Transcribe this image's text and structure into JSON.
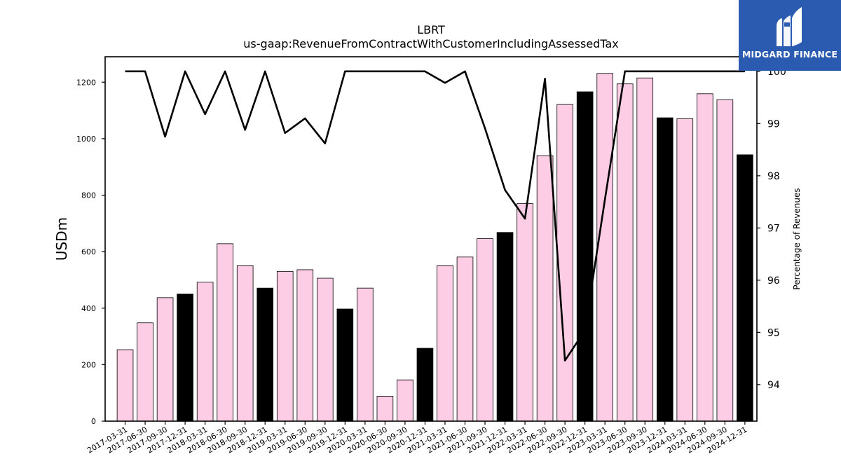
{
  "chart_data": {
    "type": "bar",
    "title": "LBRT",
    "subtitle": "us-gaap:RevenueFromContractWithCustomerIncludingAssessedTax",
    "ylabel": "USDm",
    "y2label": "Percentage of Revenues",
    "ylim": [
      0,
      1290
    ],
    "y2lim": [
      93.3,
      100.28
    ],
    "yticks": [
      0,
      200,
      400,
      600,
      800,
      1000,
      1200
    ],
    "y2ticks": [
      94,
      95,
      96,
      97,
      98,
      99,
      100
    ],
    "categories": [
      "2017-03-31",
      "2017-06-30",
      "2017-09-30",
      "2017-12-31",
      "2018-03-31",
      "2018-06-30",
      "2018-09-30",
      "2018-12-31",
      "2019-03-31",
      "2019-06-30",
      "2019-09-30",
      "2019-12-31",
      "2020-03-31",
      "2020-06-30",
      "2020-09-30",
      "2020-12-31",
      "2021-03-31",
      "2021-06-30",
      "2021-09-30",
      "2021-12-31",
      "2022-03-31",
      "2022-06-30",
      "2022-09-30",
      "2022-12-31",
      "2023-03-31",
      "2023-06-30",
      "2023-09-30",
      "2023-12-31",
      "2024-03-31",
      "2024-06-30",
      "2024-09-30",
      "2024-12-31"
    ],
    "series": [
      {
        "type": "bar",
        "values": [
          253,
          348,
          437,
          450,
          492,
          628,
          551,
          471,
          530,
          536,
          506,
          397,
          471,
          88,
          146,
          258,
          551,
          581,
          646,
          668,
          770,
          940,
          1121,
          1166,
          1231,
          1194,
          1215,
          1074,
          1071,
          1159,
          1138,
          943
        ],
        "colors": [
          "#fccde5",
          "#fccde5",
          "#fccde5",
          "#000000",
          "#fccde5",
          "#fccde5",
          "#fccde5",
          "#000000",
          "#fccde5",
          "#fccde5",
          "#fccde5",
          "#000000",
          "#fccde5",
          "#fccde5",
          "#fccde5",
          "#000000",
          "#fccde5",
          "#fccde5",
          "#fccde5",
          "#000000",
          "#fccde5",
          "#fccde5",
          "#fccde5",
          "#000000",
          "#fccde5",
          "#fccde5",
          "#fccde5",
          "#000000",
          "#fccde5",
          "#fccde5",
          "#fccde5",
          "#000000"
        ]
      },
      {
        "type": "line",
        "axis": "right",
        "color": "#000000",
        "values": [
          100,
          100,
          98.75,
          100,
          99.18,
          100,
          98.88,
          100,
          98.82,
          99.1,
          98.62,
          100,
          100,
          100,
          100,
          100,
          99.78,
          100,
          98.91,
          97.73,
          97.18,
          99.86,
          94.46,
          95.04,
          97.55,
          100,
          100,
          100,
          100,
          100,
          100,
          100
        ]
      }
    ],
    "grid": false,
    "legend": "none"
  },
  "logo": {
    "text": "MIDGARD FINANCE"
  },
  "colors": {
    "pink": "#fccde5",
    "black": "#000000",
    "brand_blue": "#2a5bb0"
  }
}
